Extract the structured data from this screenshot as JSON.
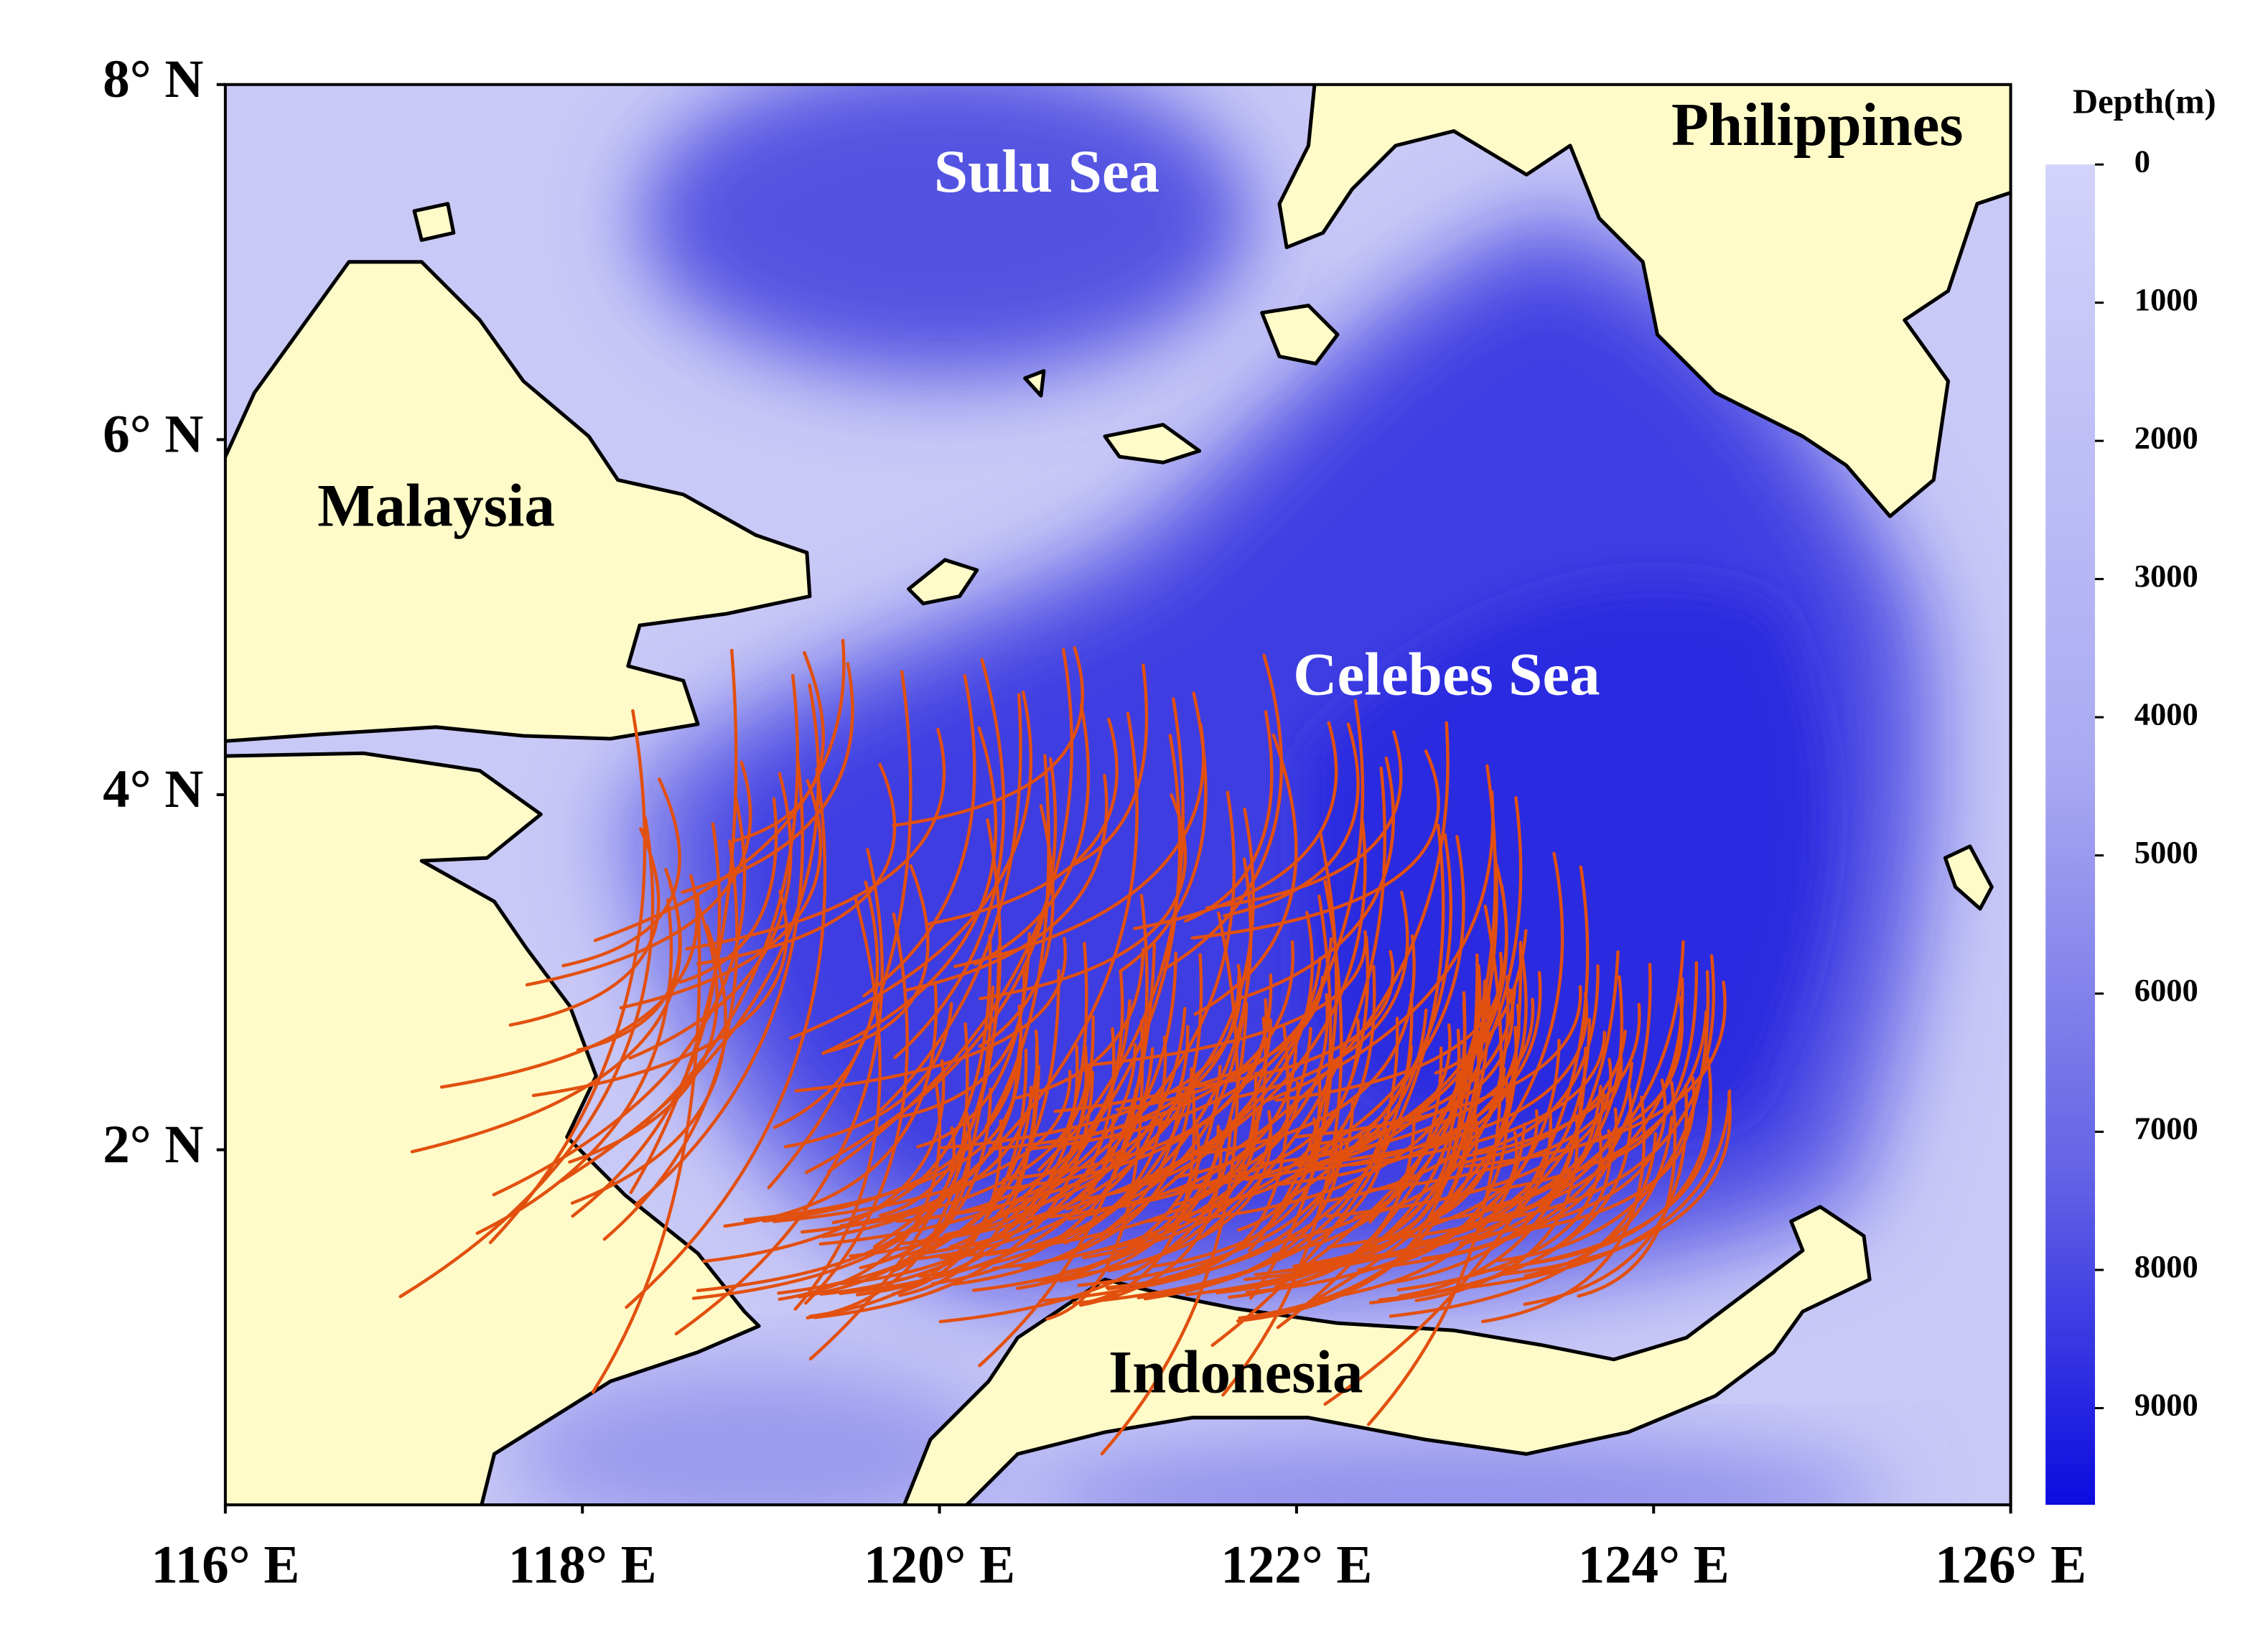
{
  "map": {
    "x_axis": {
      "lim": [
        116,
        126
      ],
      "ticks": [
        {
          "value": 116,
          "label": "116° E"
        },
        {
          "value": 118,
          "label": "118° E"
        },
        {
          "value": 120,
          "label": "120° E"
        },
        {
          "value": 122,
          "label": "122° E"
        },
        {
          "value": 124,
          "label": "124° E"
        },
        {
          "value": 126,
          "label": "126° E"
        }
      ]
    },
    "y_axis": {
      "lim": [
        0,
        8
      ],
      "ticks": [
        {
          "value": 8,
          "label": "8° N"
        },
        {
          "value": 6,
          "label": "6° N"
        },
        {
          "value": 4,
          "label": "4° N"
        },
        {
          "value": 2,
          "label": "2° N"
        }
      ]
    },
    "places": {
      "sulu_sea": "Sulu Sea",
      "philippines": "Philippines",
      "malaysia": "Malaysia",
      "celebes_sea": "Celebes Sea",
      "indonesia": "Indonesia"
    },
    "colorbar": {
      "title": "Depth(m)",
      "lim": [
        0,
        9700
      ],
      "ticks": [
        0,
        1000,
        2000,
        3000,
        4000,
        5000,
        6000,
        7000,
        8000,
        9000
      ]
    }
  }
}
